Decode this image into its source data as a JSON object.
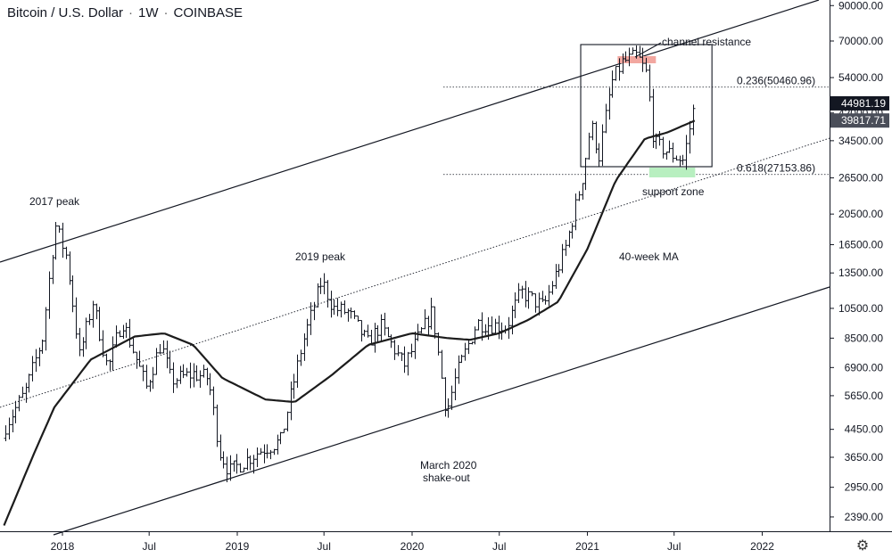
{
  "header": {
    "symbol": "Bitcoin / U.S. Dollar",
    "interval": "1W",
    "exchange": "COINBASE"
  },
  "colors": {
    "candle": "#131722",
    "ma": "#1c1c1c",
    "resistance_zone": "#f2a7a0",
    "support_zone": "#b8efc0",
    "price_badge": "#131722",
    "ma_badge": "#4a4e59"
  },
  "icons": {
    "settings": "gear-icon"
  },
  "chart_data": {
    "type": "candlestick",
    "title": "Bitcoin / U.S. Dollar · 1W · COINBASE",
    "y_scale": "log",
    "y_ticks": [
      2390,
      2950,
      3650,
      4450,
      5650,
      6900,
      8500,
      10500,
      13500,
      16500,
      20500,
      26500,
      34500,
      42000,
      54000,
      70000,
      90000
    ],
    "y_tick_labels": [
      "2390.00",
      "2950.00",
      "3650.00",
      "4450.00",
      "5650.00",
      "6900.00",
      "8500.00",
      "10500.00",
      "13500.00",
      "16500.00",
      "20500.00",
      "26500.00",
      "34500.00",
      "42000.00",
      "54000.00",
      "70000.00",
      "90000.00"
    ],
    "x_ticks": [
      "2018",
      "Jul",
      "2019",
      "Jul",
      "2020",
      "Jul",
      "2021",
      "Jul",
      "2022"
    ],
    "x_tick_dates": [
      "2018-01-01",
      "2018-07-01",
      "2019-01-01",
      "2019-07-01",
      "2020-01-01",
      "2020-07-01",
      "2021-01-01",
      "2021-07-01",
      "2022-01-01"
    ],
    "price_points": [
      [
        "2017-09-01",
        4500
      ],
      [
        "2017-10-15",
        5800
      ],
      [
        "2017-11-20",
        8500
      ],
      [
        "2017-12-17",
        19000
      ],
      [
        "2018-01-10",
        15000
      ],
      [
        "2018-02-05",
        7500
      ],
      [
        "2018-03-05",
        11000
      ],
      [
        "2018-04-05",
        6800
      ],
      [
        "2018-05-05",
        9700
      ],
      [
        "2018-06-25",
        6000
      ],
      [
        "2018-07-25",
        8200
      ],
      [
        "2018-08-15",
        6300
      ],
      [
        "2018-10-01",
        6600
      ],
      [
        "2018-11-01",
        6400
      ],
      [
        "2018-11-25",
        3800
      ],
      [
        "2018-12-15",
        3300
      ],
      [
        "2019-01-15",
        3550
      ],
      [
        "2019-02-20",
        3850
      ],
      [
        "2019-04-01",
        4100
      ],
      [
        "2019-05-15",
        8000
      ],
      [
        "2019-06-26",
        12800
      ],
      [
        "2019-07-20",
        10500
      ],
      [
        "2019-08-20",
        10200
      ],
      [
        "2019-09-30",
        8200
      ],
      [
        "2019-10-26",
        9300
      ],
      [
        "2019-12-15",
        7000
      ],
      [
        "2020-02-12",
        10300
      ],
      [
        "2020-03-12",
        5000
      ],
      [
        "2020-04-01",
        6500
      ],
      [
        "2020-05-15",
        9500
      ],
      [
        "2020-07-15",
        9200
      ],
      [
        "2020-08-15",
        11800
      ],
      [
        "2020-10-01",
        10600
      ],
      [
        "2020-11-15",
        16000
      ],
      [
        "2020-12-20",
        26000
      ],
      [
        "2021-01-08",
        39000
      ],
      [
        "2021-01-25",
        31000
      ],
      [
        "2021-02-20",
        52000
      ],
      [
        "2021-03-14",
        60000
      ],
      [
        "2021-04-14",
        63000
      ],
      [
        "2021-05-05",
        55000
      ],
      [
        "2021-05-19",
        34000
      ],
      [
        "2021-06-22",
        31500
      ],
      [
        "2021-07-20",
        30000
      ],
      [
        "2021-08-14",
        46500
      ]
    ],
    "ma_40w_points": [
      [
        "2017-09-01",
        2250
      ],
      [
        "2017-11-01",
        3700
      ],
      [
        "2017-12-15",
        5200
      ],
      [
        "2018-03-01",
        7300
      ],
      [
        "2018-06-01",
        8600
      ],
      [
        "2018-08-01",
        8800
      ],
      [
        "2018-10-01",
        8100
      ],
      [
        "2018-12-01",
        6400
      ],
      [
        "2019-03-01",
        5500
      ],
      [
        "2019-05-01",
        5400
      ],
      [
        "2019-07-15",
        6500
      ],
      [
        "2019-10-01",
        8100
      ],
      [
        "2020-01-01",
        8800
      ],
      [
        "2020-03-15",
        8500
      ],
      [
        "2020-05-01",
        8400
      ],
      [
        "2020-07-01",
        8800
      ],
      [
        "2020-09-01",
        9700
      ],
      [
        "2020-11-01",
        11000
      ],
      [
        "2021-01-01",
        16000
      ],
      [
        "2021-03-01",
        26000
      ],
      [
        "2021-05-01",
        35000
      ],
      [
        "2021-06-15",
        36500
      ],
      [
        "2021-08-14",
        39817.71
      ]
    ],
    "last_price": 44981.19,
    "last_price_label": "44981.19",
    "ma_value": 39817.71,
    "ma_value_label": "39817.71",
    "fib_levels": [
      {
        "ratio": 0.236,
        "value": 50460.96,
        "label": "0.236(50460.96)"
      },
      {
        "ratio": 0.618,
        "value": 27153.86,
        "label": "0.618(27153.86)"
      }
    ],
    "annotations": [
      {
        "text": "2017 peak"
      },
      {
        "text": "2019 peak"
      },
      {
        "text": "March 2020"
      },
      {
        "text": "shake-out"
      },
      {
        "text": "channel resistance"
      },
      {
        "text": "support zone"
      },
      {
        "text": "40-week MA"
      }
    ]
  }
}
